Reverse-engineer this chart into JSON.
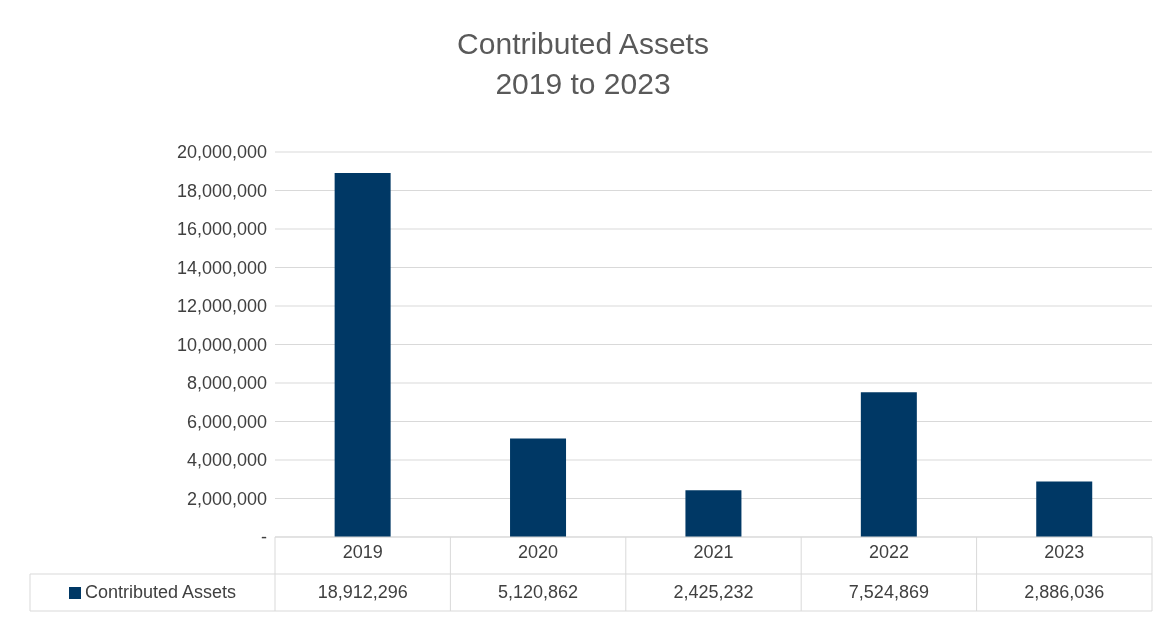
{
  "chart_data": {
    "type": "bar",
    "title": "Contributed Assets\n2019 to 2023",
    "categories": [
      "2019",
      "2020",
      "2021",
      "2022",
      "2023"
    ],
    "series": [
      {
        "name": "Contributed Assets",
        "color": "#003865",
        "values": [
          18912296,
          5120862,
          2425232,
          7524869,
          2886036
        ],
        "value_labels": [
          "18,912,296",
          "5,120,862",
          "2,425,232",
          "7,524,869",
          "2,886,036"
        ]
      }
    ],
    "ylim": [
      0,
      20000000
    ],
    "yticks": [
      {
        "value": 0,
        "label": "-"
      },
      {
        "value": 2000000,
        "label": "2,000,000"
      },
      {
        "value": 4000000,
        "label": "4,000,000"
      },
      {
        "value": 6000000,
        "label": "6,000,000"
      },
      {
        "value": 8000000,
        "label": "8,000,000"
      },
      {
        "value": 10000000,
        "label": "10,000,000"
      },
      {
        "value": 12000000,
        "label": "12,000,000"
      },
      {
        "value": 14000000,
        "label": "14,000,000"
      },
      {
        "value": 16000000,
        "label": "16,000,000"
      },
      {
        "value": 18000000,
        "label": "18,000,000"
      },
      {
        "value": 20000000,
        "label": "20,000,000"
      }
    ],
    "grid": "y",
    "legend": "bottom"
  }
}
